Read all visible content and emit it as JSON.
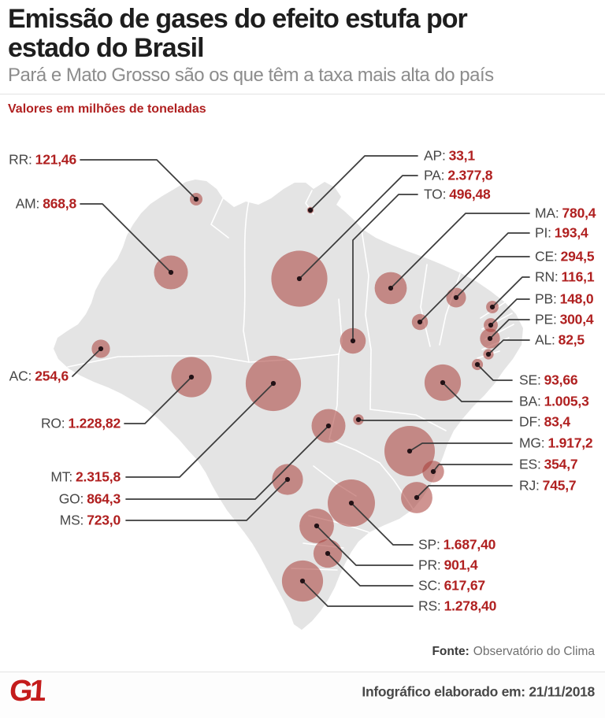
{
  "header": {
    "title_line1": "Emissão de gases do efeito estufa por",
    "title_line2": "estado do Brasil",
    "subtitle": "Pará e Mato Grosso são os que têm a taxa mais alta do país",
    "kicker": "Valores em milhões de toneladas"
  },
  "footer": {
    "source_label": "Fonte:",
    "source_value": "Observatório do Clima",
    "credit": "Infográfico elaborado em: 21/11/2018",
    "logo_text": "G1"
  },
  "colors": {
    "accent": "#b02020",
    "bubble": "rgba(167,60,55,0.55)",
    "map": "#e4e4e4",
    "line": "#3b3b3b",
    "dot": "#231216"
  },
  "chart_data": {
    "type": "bubble-map",
    "title": "Emissão de gases do efeito estufa por estado do Brasil",
    "subtitle": "Pará e Mato Grosso são os que têm a taxa mais alta do país",
    "unit": "milhões de toneladas",
    "source": "Observatório do Clima",
    "states": [
      {
        "code": "RR",
        "display": "121,46",
        "value": 121.46
      },
      {
        "code": "AM",
        "display": "868,8",
        "value": 868.8
      },
      {
        "code": "AC",
        "display": "254,6",
        "value": 254.6
      },
      {
        "code": "RO",
        "display": "1.228,82",
        "value": 1228.82
      },
      {
        "code": "MT",
        "display": "2.315,8",
        "value": 2315.8
      },
      {
        "code": "GO",
        "display": "864,3",
        "value": 864.3
      },
      {
        "code": "MS",
        "display": "723,0",
        "value": 723.0
      },
      {
        "code": "AP",
        "display": "33,1",
        "value": 33.1
      },
      {
        "code": "PA",
        "display": "2.377,8",
        "value": 2377.8
      },
      {
        "code": "TO",
        "display": "496,48",
        "value": 496.48
      },
      {
        "code": "MA",
        "display": "780,4",
        "value": 780.4
      },
      {
        "code": "PI",
        "display": "193,4",
        "value": 193.4
      },
      {
        "code": "CE",
        "display": "294,5",
        "value": 294.5
      },
      {
        "code": "RN",
        "display": "116,1",
        "value": 116.1
      },
      {
        "code": "PB",
        "display": "148,0",
        "value": 148.0
      },
      {
        "code": "PE",
        "display": "300,4",
        "value": 300.4
      },
      {
        "code": "AL",
        "display": "82,5",
        "value": 82.5
      },
      {
        "code": "SE",
        "display": "93,66",
        "value": 93.66
      },
      {
        "code": "BA",
        "display": "1.005,3",
        "value": 1005.3
      },
      {
        "code": "DF",
        "display": "83,4",
        "value": 83.4
      },
      {
        "code": "MG",
        "display": "1.917,2",
        "value": 1917.2
      },
      {
        "code": "ES",
        "display": "354,7",
        "value": 354.7
      },
      {
        "code": "RJ",
        "display": "745,7",
        "value": 745.7
      },
      {
        "code": "SP",
        "display": "1.687,40",
        "value": 1687.4
      },
      {
        "code": "PR",
        "display": "901,4",
        "value": 901.4
      },
      {
        "code": "SC",
        "display": "617,67",
        "value": 617.67
      },
      {
        "code": "RS",
        "display": "1.278,40",
        "value": 1278.4
      }
    ]
  }
}
